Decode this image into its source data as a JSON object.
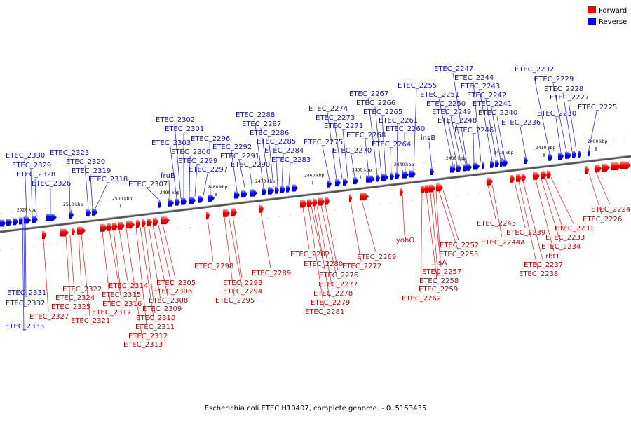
{
  "legend": {
    "forward": "Forward",
    "reverse": "Reverse"
  },
  "colors": {
    "forward": "#ff0000",
    "reverse": "#0000ff",
    "forward_label": "#cc0000",
    "reverse_label": "#1111bb",
    "axis": "#888888"
  },
  "caption": "Escherichia coli ETEC H10407, complete genome. - 0..5153435",
  "ticks": [
    "2520 kbp",
    "2510 kbp",
    "2500 kbp",
    "2490 kbp",
    "2480 kbp",
    "2470 kbp",
    "2460 kbp",
    "2450 kbp",
    "2440 kbp",
    "2430 kbp",
    "2420 kbp",
    "2410 kbp",
    "2400 kbp"
  ],
  "reverse_labels": [
    "ETEC_2333",
    "ETEC_2332",
    "ETEC_2331",
    "ETEC_2330",
    "ETEC_2329",
    "ETEC_2328",
    "ETEC_2326",
    "ETEC_2323",
    "ETEC_2320",
    "ETEC_2319",
    "ETEC_2318",
    "ETEC_2307",
    "fruB",
    "ETEC_2303",
    "ETEC_2302",
    "ETEC_2301",
    "ETEC_2300",
    "ETEC_2299",
    "ETEC_2297",
    "ETEC_2296",
    "ETEC_2292",
    "ETEC_2291",
    "ETEC_2290",
    "ETEC_2288",
    "ETEC_2287",
    "ETEC_2286",
    "ETEC_2285",
    "ETEC_2284",
    "ETEC_2283",
    "ETEC_2275",
    "ETEC_2274",
    "ETEC_2273",
    "ETEC_2271",
    "ETEC_2270",
    "ETEC_2268",
    "ETEC_2267",
    "ETEC_2266",
    "ETEC_2265",
    "ETEC_2264",
    "ETEC_2261",
    "ETEC_2260",
    "ETEC_2255",
    "insB",
    "ETEC_2251",
    "ETEC_2250",
    "ETEC_2249",
    "ETEC_2248",
    "ETEC_2247",
    "ETEC_2246",
    "ETEC_2244",
    "ETEC_2243",
    "ETEC_2242",
    "ETEC_2241",
    "ETEC_2240",
    "ETEC_2236",
    "ETEC_2232",
    "ETEC_2230",
    "ETEC_2229",
    "ETEC_2228",
    "ETEC_2227",
    "ETEC_2225"
  ],
  "forward_labels": [
    "ETEC_2327",
    "ETEC_2325",
    "ETEC_2324",
    "ETEC_2322",
    "ETEC_2321",
    "ETEC_2317",
    "ETEC_2316",
    "ETEC_2315",
    "ETEC_2314",
    "ETEC_2313",
    "ETEC_2312",
    "ETEC_2311",
    "ETEC_2310",
    "ETEC_2309",
    "ETEC_2308",
    "ETEC_2306",
    "ETEC_2305",
    "ETEC_2298",
    "ETEC_2295",
    "ETEC_2294",
    "ETEC_2293",
    "ETEC_2289",
    "ETEC_2282",
    "ETEC_2281",
    "ETEC_2280",
    "ETEC_2279",
    "ETEC_2278",
    "ETEC_2277",
    "ETEC_2276",
    "ETEC_2272",
    "ETEC_2269",
    "yohO",
    "ETEC_2262",
    "ETEC_2259",
    "ETEC_2258",
    "ETEC_2257",
    "insA",
    "ETEC_2253",
    "ETEC_2252",
    "ETEC_2245",
    "ETEC_2244A",
    "ETEC_2239",
    "ETEC_2238",
    "ETEC_2237",
    "rbtT",
    "ETEC_2234",
    "ETEC_2233",
    "ETEC_2231",
    "ETEC_2226",
    "ETEC_2224"
  ]
}
